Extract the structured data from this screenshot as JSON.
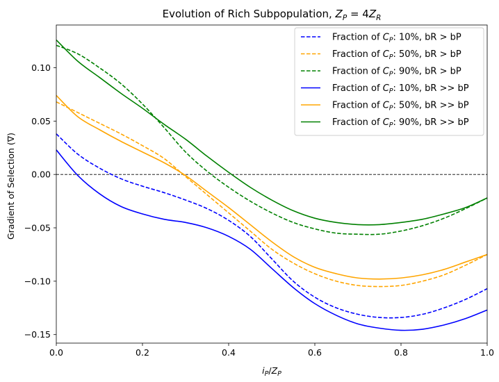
{
  "chart_data": {
    "type": "line",
    "title": "Evolution of Rich Subpopulation, Z_P = 4Z_R",
    "title_parts": {
      "prefix": "Evolution of Rich Subpopulation, ",
      "z1": "Z",
      "sub1": "P",
      "mid": " = 4",
      "z2": "Z",
      "sub2": "R"
    },
    "xlabel_parts": {
      "i": "i",
      "isub": "P",
      "slash": "/",
      "z": "Z",
      "zsub": "P"
    },
    "xlabel": "i_P/Z_P",
    "ylabel": "Gradient of Selection (∇)",
    "xlim": [
      0.0,
      1.0
    ],
    "ylim": [
      -0.158,
      0.14
    ],
    "xticks": [
      0.0,
      0.2,
      0.4,
      0.6,
      0.8,
      1.0
    ],
    "xtick_labels": [
      "0.0",
      "0.2",
      "0.4",
      "0.6",
      "0.8",
      "1.0"
    ],
    "yticks": [
      0.1,
      0.05,
      0.0,
      -0.05,
      -0.1,
      -0.15
    ],
    "ytick_labels": [
      "0.10",
      "0.05",
      "0.00",
      "−0.05",
      "−0.10",
      "−0.15"
    ],
    "reference_line": {
      "y": 0.0,
      "style": "dashed",
      "color": "#000000"
    },
    "legend_position": "top-right",
    "x": [
      0.0,
      0.05,
      0.1,
      0.15,
      0.2,
      0.25,
      0.3,
      0.35,
      0.4,
      0.45,
      0.5,
      0.55,
      0.6,
      0.65,
      0.7,
      0.75,
      0.8,
      0.85,
      0.9,
      0.95,
      1.0
    ],
    "series": [
      {
        "name": "Fraction of C_P: 10%, bR > bP",
        "legend": {
          "pre": "Fraction of ",
          "c": "C",
          "sub": "P",
          "post": ": 10%, bR > bP"
        },
        "color": "#0000ff",
        "dash": true,
        "values": [
          0.038,
          0.019,
          0.006,
          -0.004,
          -0.011,
          -0.017,
          -0.024,
          -0.032,
          -0.043,
          -0.058,
          -0.079,
          -0.1,
          -0.115,
          -0.125,
          -0.131,
          -0.134,
          -0.134,
          -0.131,
          -0.125,
          -0.117,
          -0.107
        ]
      },
      {
        "name": "Fraction of C_P: 50%, bR > bP",
        "legend": {
          "pre": "Fraction of ",
          "c": "C",
          "sub": "P",
          "post": ": 50%, bR > bP"
        },
        "color": "#ffa500",
        "dash": true,
        "values": [
          0.068,
          0.058,
          0.048,
          0.038,
          0.027,
          0.015,
          -0.002,
          -0.019,
          -0.036,
          -0.053,
          -0.07,
          -0.083,
          -0.093,
          -0.1,
          -0.104,
          -0.105,
          -0.104,
          -0.1,
          -0.094,
          -0.085,
          -0.075
        ]
      },
      {
        "name": "Fraction of C_P: 90%, bR > bP",
        "legend": {
          "pre": "Fraction of ",
          "c": "C",
          "sub": "P",
          "post": ": 90%, bR > bP"
        },
        "color": "#008000",
        "dash": true,
        "values": [
          0.121,
          0.113,
          0.1,
          0.085,
          0.066,
          0.044,
          0.021,
          0.003,
          -0.012,
          -0.025,
          -0.036,
          -0.045,
          -0.051,
          -0.055,
          -0.056,
          -0.056,
          -0.053,
          -0.048,
          -0.041,
          -0.032,
          -0.022
        ]
      },
      {
        "name": "Fraction of C_P: 10%, bR >> bP",
        "legend": {
          "pre": "Fraction of ",
          "c": "C",
          "sub": "P",
          "post": ": 10%, bR >> bP"
        },
        "color": "#0000ff",
        "dash": false,
        "values": [
          0.023,
          -0.001,
          -0.018,
          -0.03,
          -0.037,
          -0.042,
          -0.045,
          -0.05,
          -0.058,
          -0.07,
          -0.088,
          -0.106,
          -0.121,
          -0.132,
          -0.14,
          -0.144,
          -0.146,
          -0.145,
          -0.141,
          -0.135,
          -0.127
        ]
      },
      {
        "name": "Fraction of C_P: 50%, bR >> bP",
        "legend": {
          "pre": "Fraction of ",
          "c": "C",
          "sub": "P",
          "post": ": 50%, bR >> bP"
        },
        "color": "#ffa500",
        "dash": false,
        "values": [
          0.074,
          0.054,
          0.042,
          0.031,
          0.021,
          0.011,
          -0.001,
          -0.016,
          -0.031,
          -0.047,
          -0.063,
          -0.077,
          -0.087,
          -0.093,
          -0.097,
          -0.098,
          -0.097,
          -0.094,
          -0.089,
          -0.082,
          -0.075
        ]
      },
      {
        "name": "Fraction of C_P: 90%, bR >> bP",
        "legend": {
          "pre": "Fraction of ",
          "c": "C",
          "sub": "P",
          "post": ": 90%, bR >> bP"
        },
        "color": "#008000",
        "dash": false,
        "values": [
          0.126,
          0.106,
          0.091,
          0.076,
          0.062,
          0.047,
          0.033,
          0.017,
          0.002,
          -0.012,
          -0.024,
          -0.034,
          -0.041,
          -0.045,
          -0.047,
          -0.047,
          -0.045,
          -0.042,
          -0.037,
          -0.031,
          -0.022
        ]
      }
    ]
  }
}
